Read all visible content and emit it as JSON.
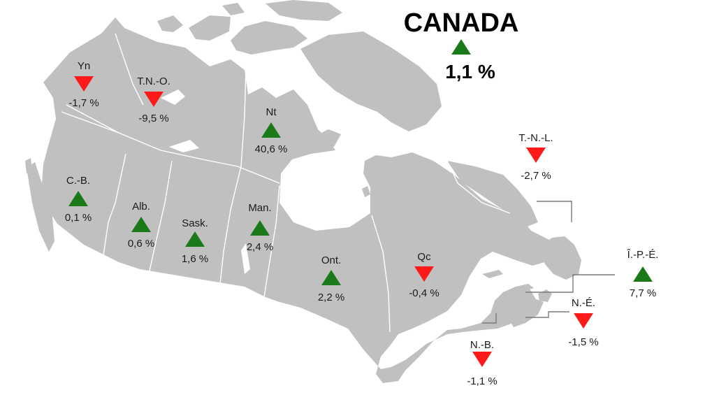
{
  "title": "CANADA",
  "national": {
    "value": "1,1 %",
    "direction": "up"
  },
  "colors": {
    "up": "#1a7a1a",
    "down": "#ff1a1a",
    "land": "#c0c0c0",
    "border": "#ffffff",
    "leader": "#7a7a7a"
  },
  "regions": [
    {
      "id": "yn",
      "abbr": "Yn",
      "value": "-1,7 %",
      "direction": "down"
    },
    {
      "id": "tno",
      "abbr": "T.N.-O.",
      "value": "-9,5 %",
      "direction": "down"
    },
    {
      "id": "nt",
      "abbr": "Nt",
      "value": "40,6 %",
      "direction": "up"
    },
    {
      "id": "cb",
      "abbr": "C.-B.",
      "value": "0,1 %",
      "direction": "up"
    },
    {
      "id": "alb",
      "abbr": "Alb.",
      "value": "0,6 %",
      "direction": "up"
    },
    {
      "id": "sask",
      "abbr": "Sask.",
      "value": "1,6 %",
      "direction": "up"
    },
    {
      "id": "man",
      "abbr": "Man.",
      "value": "2,4 %",
      "direction": "up"
    },
    {
      "id": "ont",
      "abbr": "Ont.",
      "value": "2,2 %",
      "direction": "up"
    },
    {
      "id": "qc",
      "abbr": "Qc",
      "value": "-0,4 %",
      "direction": "down"
    },
    {
      "id": "tnl",
      "abbr": "T.-N.-L.",
      "value": "-2,7 %",
      "direction": "down"
    },
    {
      "id": "ipe",
      "abbr": "Î.-P.-É.",
      "value": "7,7 %",
      "direction": "up"
    },
    {
      "id": "ne",
      "abbr": "N.-É.",
      "value": "-1,5 %",
      "direction": "down"
    },
    {
      "id": "nb",
      "abbr": "N.-B.",
      "value": "-1,1 %",
      "direction": "down"
    }
  ]
}
